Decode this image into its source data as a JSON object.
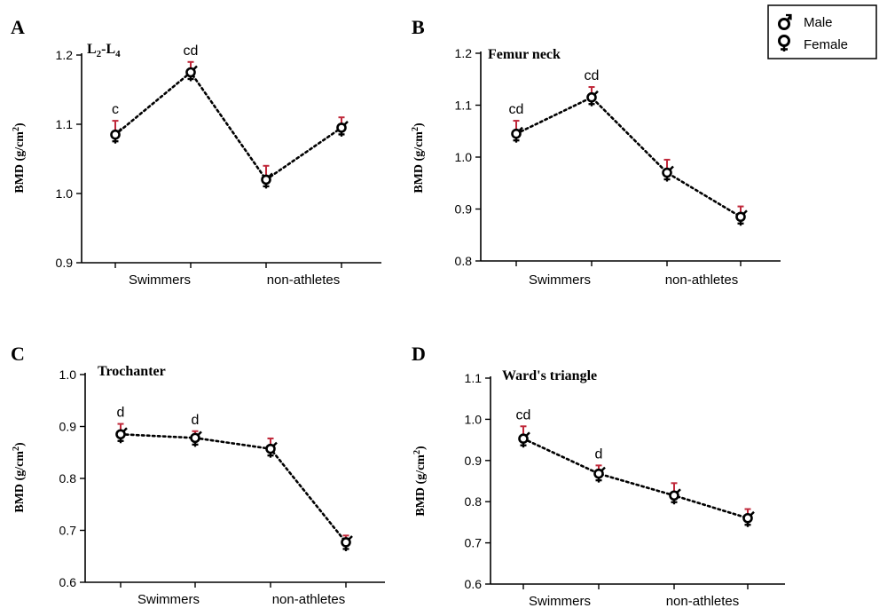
{
  "legend": {
    "items": [
      {
        "label": "Male",
        "icon": "male-symbol-icon"
      },
      {
        "label": "Female",
        "icon": "female-symbol-icon"
      }
    ]
  },
  "colors": {
    "error_bar": "#c0283a",
    "line": "#000000"
  },
  "chart_data": [
    {
      "type": "line",
      "panel": "A",
      "title": "L",
      "title_sub1": "2",
      "title_dash": "-L",
      "title_sub2": "4",
      "ylabel": "BMD (g/cm",
      "ylabel_sup": "2",
      "ylabel_close": ")",
      "ylim": [
        0.9,
        1.2
      ],
      "yticks": [
        "0.9",
        "1.0",
        "1.1",
        "1.2"
      ],
      "ytick_values": [
        0.9,
        1.0,
        1.1,
        1.2
      ],
      "categories": [
        "Swimmers",
        "non-athletes"
      ],
      "points": [
        {
          "x": 1,
          "y": 1.085,
          "err": 0.02,
          "annotation": "c"
        },
        {
          "x": 2,
          "y": 1.175,
          "err": 0.015,
          "annotation": "cd"
        },
        {
          "x": 3,
          "y": 1.02,
          "err": 0.02,
          "annotation": ""
        },
        {
          "x": 4,
          "y": 1.095,
          "err": 0.015,
          "annotation": ""
        }
      ]
    },
    {
      "type": "line",
      "panel": "B",
      "title": "Femur neck",
      "ylabel": "BMD (g/cm",
      "ylabel_sup": "2",
      "ylabel_close": ")",
      "ylim": [
        0.8,
        1.2
      ],
      "yticks": [
        "0.8",
        "0.9",
        "1.0",
        "1.1",
        "1.2"
      ],
      "ytick_values": [
        0.8,
        0.9,
        1.0,
        1.1,
        1.2
      ],
      "categories": [
        "Swimmers",
        "non-athletes"
      ],
      "points": [
        {
          "x": 1,
          "y": 1.045,
          "err": 0.025,
          "annotation": "cd"
        },
        {
          "x": 2,
          "y": 1.115,
          "err": 0.02,
          "annotation": "cd"
        },
        {
          "x": 3,
          "y": 0.97,
          "err": 0.025,
          "annotation": ""
        },
        {
          "x": 4,
          "y": 0.885,
          "err": 0.02,
          "annotation": ""
        }
      ]
    },
    {
      "type": "line",
      "panel": "C",
      "title": "Trochanter",
      "ylabel": "BMD (g/cm",
      "ylabel_sup": "2",
      "ylabel_close": ")",
      "ylim": [
        0.6,
        1.0
      ],
      "yticks": [
        "0.6",
        "0.7",
        "0.8",
        "0.9",
        "1.0"
      ],
      "ytick_values": [
        0.6,
        0.7,
        0.8,
        0.9,
        1.0
      ],
      "categories": [
        "Swimmers",
        "non-athletes"
      ],
      "points": [
        {
          "x": 1,
          "y": 0.885,
          "err": 0.02,
          "annotation": "d"
        },
        {
          "x": 2,
          "y": 0.878,
          "err": 0.013,
          "annotation": "d"
        },
        {
          "x": 3,
          "y": 0.857,
          "err": 0.02,
          "annotation": ""
        },
        {
          "x": 4,
          "y": 0.677,
          "err": 0.013,
          "annotation": ""
        }
      ]
    },
    {
      "type": "line",
      "panel": "D",
      "title": "Ward's triangle",
      "ylabel": "BMD (g/cm",
      "ylabel_sup": "2",
      "ylabel_close": ")",
      "ylim": [
        0.6,
        1.1
      ],
      "yticks": [
        "0.6",
        "0.7",
        "0.8",
        "0.9",
        "1.0",
        "1.1"
      ],
      "ytick_values": [
        0.6,
        0.7,
        0.8,
        0.9,
        1.0,
        1.1
      ],
      "categories": [
        "Swimmers",
        "non-athletes"
      ],
      "points": [
        {
          "x": 1,
          "y": 0.953,
          "err": 0.03,
          "annotation": "cd"
        },
        {
          "x": 2,
          "y": 0.868,
          "err": 0.02,
          "annotation": "d"
        },
        {
          "x": 3,
          "y": 0.815,
          "err": 0.03,
          "annotation": ""
        },
        {
          "x": 4,
          "y": 0.76,
          "err": 0.022,
          "annotation": ""
        }
      ]
    }
  ]
}
